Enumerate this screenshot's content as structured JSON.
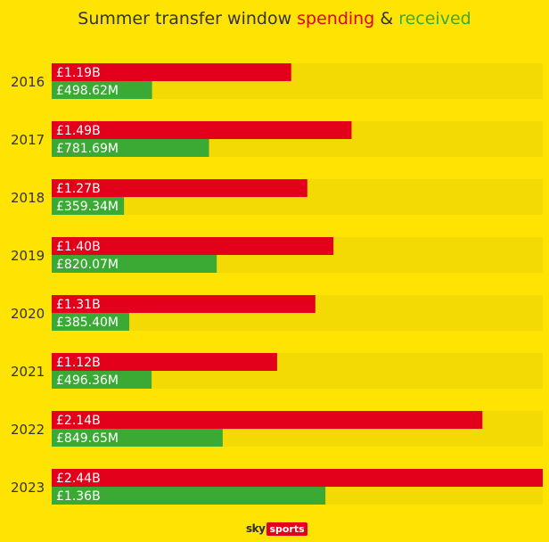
{
  "chart_data": {
    "type": "bar",
    "title": {
      "prefix": "Summer transfer window ",
      "spending": "spending",
      "amp": " & ",
      "received": "received"
    },
    "categories": [
      "2016",
      "2017",
      "2018",
      "2019",
      "2020",
      "2021",
      "2022",
      "2023"
    ],
    "series": [
      {
        "name": "spending",
        "values": [
          1.19,
          1.49,
          1.27,
          1.4,
          1.31,
          1.12,
          2.14,
          2.44
        ],
        "labels": [
          "£1.19B",
          "£1.49B",
          "£1.27B",
          "£1.40B",
          "£1.31B",
          "£1.12B",
          "£2.14B",
          "£2.44B"
        ]
      },
      {
        "name": "received",
        "values": [
          0.49862,
          0.78169,
          0.35934,
          0.82007,
          0.3854,
          0.49636,
          0.84965,
          1.36
        ],
        "labels": [
          "£498.62M",
          "£781.69M",
          "£359.34M",
          "£820.07M",
          "£385.40M",
          "£496.36M",
          "£849.65M",
          "£1.36B"
        ]
      }
    ],
    "xlim": [
      0,
      2.44
    ],
    "unit": "£ billions"
  },
  "colors": {
    "background": "#FFE302",
    "track": "#F4DA05",
    "spending": "#E3001B",
    "received": "#3BAA35",
    "text": "#333333"
  },
  "logo": {
    "sky": "sky",
    "sports": "sports"
  }
}
